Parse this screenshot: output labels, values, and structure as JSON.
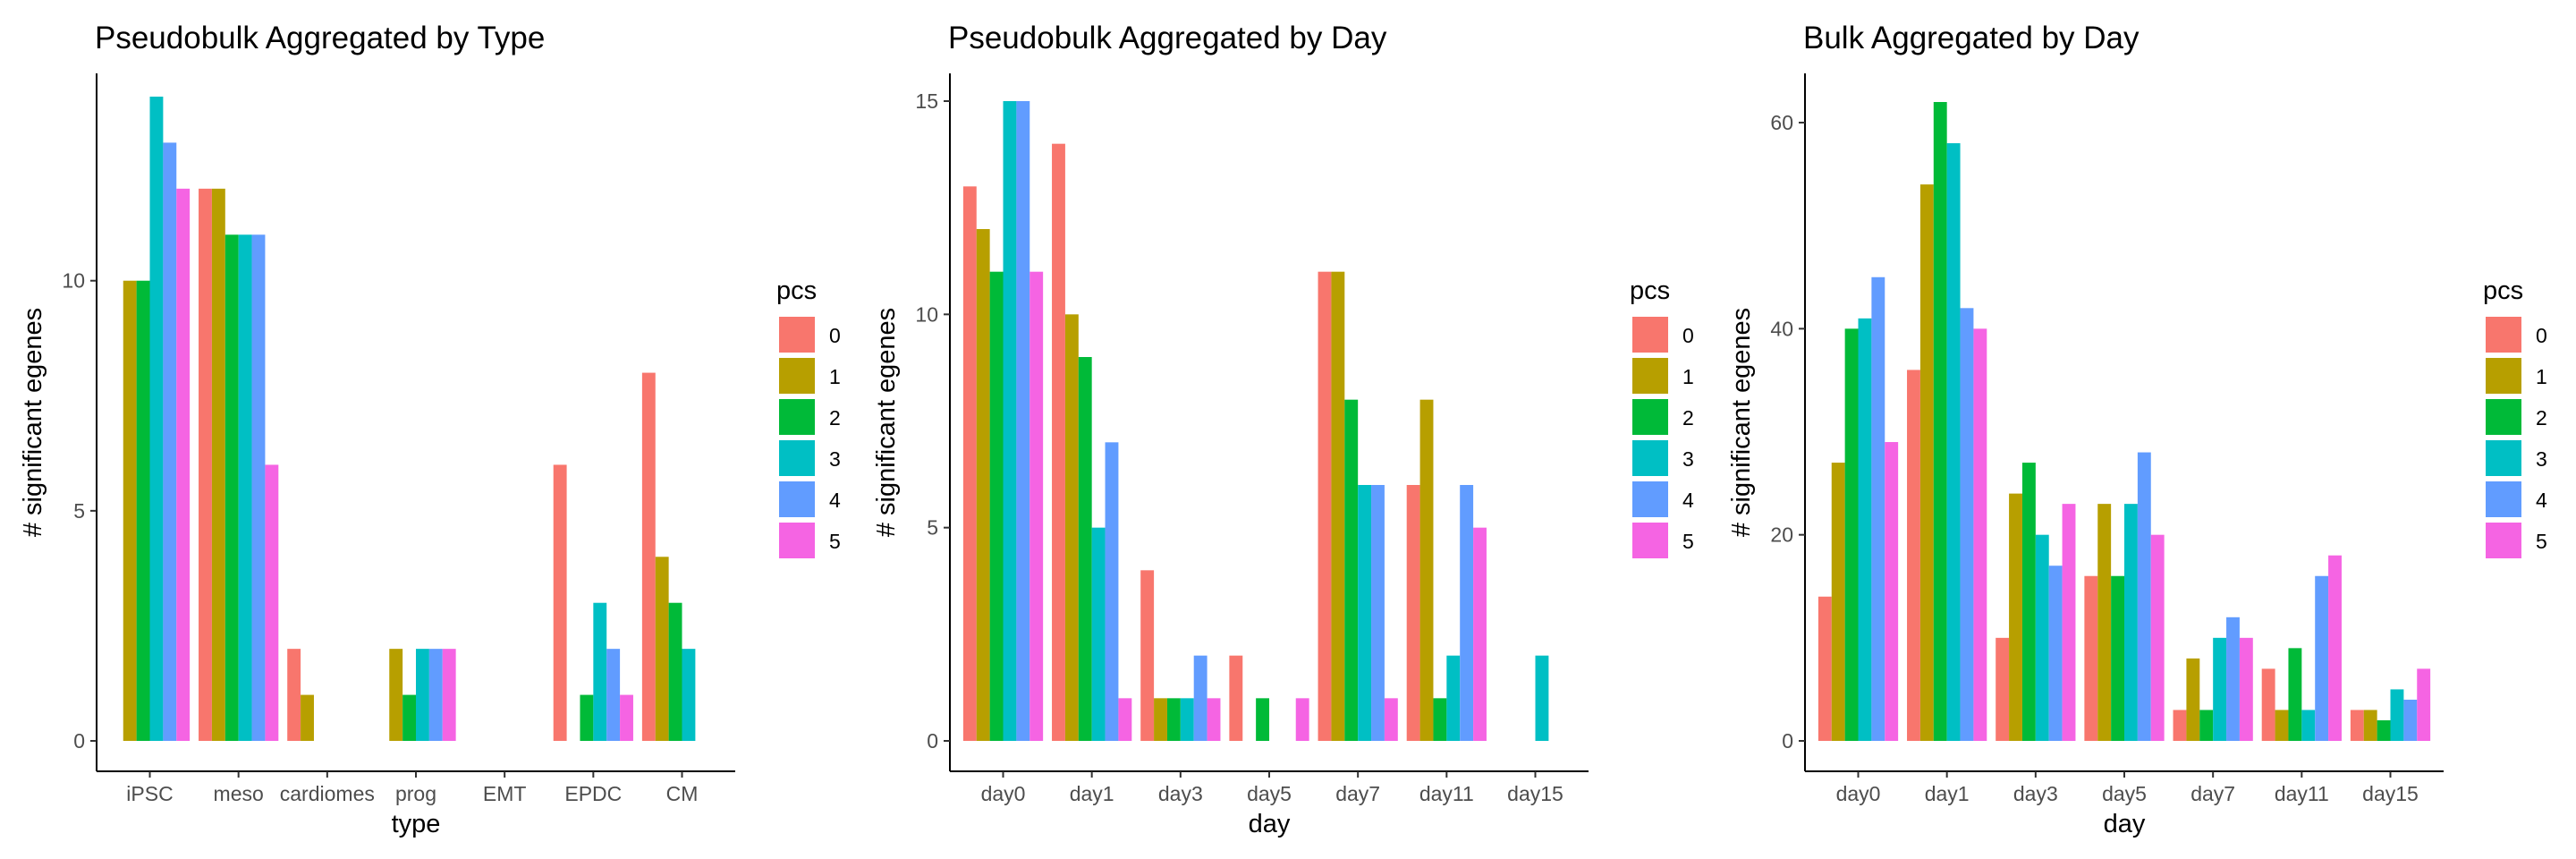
{
  "legend": {
    "title": "pcs",
    "labels": [
      "0",
      "1",
      "2",
      "3",
      "4",
      "5"
    ],
    "colors": [
      "#F8766D",
      "#B79F00",
      "#00BA38",
      "#00BFC4",
      "#619CFF",
      "#F564E3"
    ]
  },
  "chart_data": [
    {
      "type": "bar",
      "title": "Pseudobulk Aggregated by Type",
      "xlabel": "type",
      "ylabel": "# significant egenes",
      "categories": [
        "iPSC",
        "meso",
        "cardiomes",
        "prog",
        "EMT",
        "EPDC",
        "CM"
      ],
      "ylim": [
        0,
        14
      ],
      "yticks": [
        0,
        5,
        10
      ],
      "grid": false,
      "legend_position": "right",
      "series": [
        {
          "name": "0",
          "values": [
            0,
            12,
            2,
            0,
            0,
            6,
            8
          ]
        },
        {
          "name": "1",
          "values": [
            10,
            12,
            1,
            2,
            0,
            0,
            4
          ]
        },
        {
          "name": "2",
          "values": [
            10,
            11,
            0,
            1,
            0,
            1,
            3
          ]
        },
        {
          "name": "3",
          "values": [
            14,
            11,
            0,
            2,
            0,
            3,
            2
          ]
        },
        {
          "name": "4",
          "values": [
            13,
            11,
            0,
            2,
            0,
            2,
            0
          ]
        },
        {
          "name": "5",
          "values": [
            12,
            6,
            0,
            2,
            0,
            1,
            0
          ]
        }
      ]
    },
    {
      "type": "bar",
      "title": "Pseudobulk Aggregated by Day",
      "xlabel": "day",
      "ylabel": "# significant egenes",
      "categories": [
        "day0",
        "day1",
        "day3",
        "day5",
        "day7",
        "day11",
        "day15"
      ],
      "ylim": [
        0,
        15
      ],
      "yticks": [
        0,
        5,
        10,
        15
      ],
      "grid": false,
      "legend_position": "right",
      "series": [
        {
          "name": "0",
          "values": [
            13,
            14,
            4,
            2,
            11,
            6,
            0
          ]
        },
        {
          "name": "1",
          "values": [
            12,
            10,
            1,
            0,
            11,
            8,
            0
          ]
        },
        {
          "name": "2",
          "values": [
            11,
            9,
            1,
            1,
            8,
            1,
            0
          ]
        },
        {
          "name": "3",
          "values": [
            15,
            5,
            1,
            0,
            6,
            2,
            2
          ]
        },
        {
          "name": "4",
          "values": [
            15,
            7,
            2,
            0,
            6,
            6,
            0
          ]
        },
        {
          "name": "5",
          "values": [
            11,
            1,
            1,
            1,
            1,
            5,
            0
          ]
        }
      ]
    },
    {
      "type": "bar",
      "title": "Bulk Aggregated by Day",
      "xlabel": "day",
      "ylabel": "# significant egenes",
      "categories": [
        "day0",
        "day1",
        "day3",
        "day5",
        "day7",
        "day11",
        "day15"
      ],
      "ylim": [
        0,
        62
      ],
      "yticks": [
        0,
        20,
        40,
        60
      ],
      "grid": false,
      "legend_position": "right",
      "series": [
        {
          "name": "0",
          "values": [
            14,
            36,
            10,
            16,
            3,
            7,
            3
          ]
        },
        {
          "name": "1",
          "values": [
            27,
            54,
            24,
            23,
            8,
            3,
            3
          ]
        },
        {
          "name": "2",
          "values": [
            40,
            62,
            27,
            16,
            3,
            9,
            2
          ]
        },
        {
          "name": "3",
          "values": [
            41,
            58,
            20,
            23,
            10,
            3,
            5
          ]
        },
        {
          "name": "4",
          "values": [
            45,
            42,
            17,
            28,
            12,
            16,
            4
          ]
        },
        {
          "name": "5",
          "values": [
            29,
            40,
            23,
            20,
            10,
            18,
            7
          ]
        }
      ]
    }
  ]
}
